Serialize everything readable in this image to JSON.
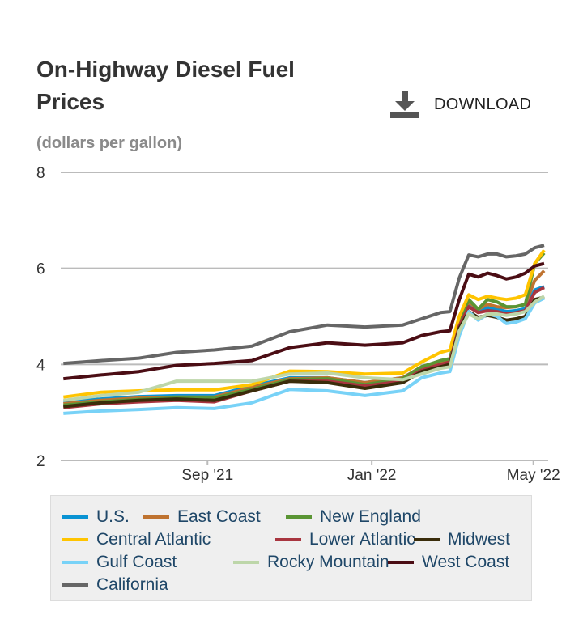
{
  "title": "On-Highway Diesel Fuel Prices",
  "subtitle": "(dollars per gallon)",
  "download_label": "DOWNLOAD",
  "download_icon": "download-icon",
  "chart_data": {
    "type": "line",
    "title": "On-Highway Diesel Fuel Prices",
    "ylabel": "dollars per gallon",
    "ylim": [
      2,
      8
    ],
    "yticks": [
      "2",
      "4",
      "6",
      "8"
    ],
    "xticks": [
      {
        "label": "Sep '21",
        "date": "2021-09-01"
      },
      {
        "label": "Jan '22",
        "date": "2022-01-01"
      },
      {
        "label": "May '22",
        "date": "2022-05-01"
      }
    ],
    "xlim": [
      "2021-05-15",
      "2022-05-12"
    ],
    "grid": true,
    "legend_position": "bottom",
    "x": [
      "2021-05-17",
      "2021-06-14",
      "2021-07-12",
      "2021-08-09",
      "2021-09-06",
      "2021-10-04",
      "2021-11-01",
      "2021-11-29",
      "2021-12-27",
      "2022-01-24",
      "2022-02-07",
      "2022-02-21",
      "2022-02-28",
      "2022-03-07",
      "2022-03-14",
      "2022-03-21",
      "2022-03-28",
      "2022-04-04",
      "2022-04-11",
      "2022-04-18",
      "2022-04-25",
      "2022-05-02",
      "2022-05-09"
    ],
    "series": [
      {
        "name": "U.S.",
        "color": "#0a93d3",
        "values": [
          3.22,
          3.28,
          3.33,
          3.35,
          3.35,
          3.55,
          3.72,
          3.72,
          3.62,
          3.72,
          3.95,
          4.05,
          4.1,
          4.85,
          5.25,
          5.13,
          5.18,
          5.15,
          5.1,
          5.12,
          5.16,
          5.55,
          5.62
        ]
      },
      {
        "name": "East Coast",
        "color": "#bf7330",
        "values": [
          3.18,
          3.25,
          3.3,
          3.32,
          3.32,
          3.52,
          3.7,
          3.72,
          3.62,
          3.72,
          3.95,
          4.05,
          4.1,
          4.9,
          5.3,
          5.15,
          5.25,
          5.2,
          5.18,
          5.2,
          5.25,
          5.75,
          5.95
        ]
      },
      {
        "name": "New England",
        "color": "#5a9534",
        "values": [
          3.15,
          3.22,
          3.27,
          3.3,
          3.3,
          3.48,
          3.68,
          3.7,
          3.58,
          3.7,
          3.95,
          4.08,
          4.12,
          4.9,
          5.35,
          5.15,
          5.35,
          5.3,
          5.2,
          5.2,
          5.25,
          6.1,
          6.32
        ]
      },
      {
        "name": "Central Atlantic",
        "color": "#ffc400",
        "values": [
          3.32,
          3.42,
          3.45,
          3.47,
          3.47,
          3.58,
          3.86,
          3.85,
          3.8,
          3.82,
          4.05,
          4.25,
          4.3,
          5.0,
          5.45,
          5.35,
          5.42,
          5.38,
          5.35,
          5.38,
          5.45,
          6.1,
          6.38
        ]
      },
      {
        "name": "Lower Atlantic",
        "color": "#a8353f",
        "values": [
          3.1,
          3.18,
          3.22,
          3.25,
          3.22,
          3.45,
          3.65,
          3.65,
          3.55,
          3.65,
          3.88,
          4.0,
          4.05,
          4.8,
          5.2,
          5.08,
          5.12,
          5.1,
          5.05,
          5.08,
          5.12,
          5.5,
          5.6
        ]
      },
      {
        "name": "Midwest",
        "color": "#3a2d0b",
        "values": [
          3.12,
          3.2,
          3.25,
          3.28,
          3.25,
          3.45,
          3.65,
          3.62,
          3.5,
          3.62,
          3.85,
          3.95,
          4.0,
          4.75,
          5.1,
          4.98,
          5.02,
          4.98,
          4.92,
          4.95,
          5.0,
          5.35,
          5.4
        ]
      },
      {
        "name": "Gulf Coast",
        "color": "#78d2f7",
        "values": [
          2.98,
          3.03,
          3.06,
          3.1,
          3.08,
          3.2,
          3.48,
          3.45,
          3.35,
          3.45,
          3.72,
          3.82,
          3.85,
          4.6,
          5.1,
          4.92,
          5.05,
          5.0,
          4.85,
          4.88,
          4.95,
          5.28,
          5.38
        ]
      },
      {
        "name": "Rocky Mountain",
        "color": "#bdd6a9",
        "values": [
          3.25,
          3.35,
          3.42,
          3.65,
          3.65,
          3.65,
          3.8,
          3.82,
          3.72,
          3.68,
          3.8,
          3.92,
          3.95,
          4.7,
          5.05,
          4.95,
          5.05,
          5.05,
          5.02,
          5.05,
          5.1,
          5.3,
          5.42
        ]
      },
      {
        "name": "West Coast",
        "color": "#4b0d14",
        "values": [
          3.7,
          3.78,
          3.85,
          3.98,
          4.02,
          4.08,
          4.35,
          4.45,
          4.4,
          4.45,
          4.6,
          4.68,
          4.7,
          5.35,
          5.88,
          5.82,
          5.9,
          5.85,
          5.78,
          5.82,
          5.9,
          6.05,
          6.1
        ]
      },
      {
        "name": "California",
        "color": "#666666",
        "values": [
          4.02,
          4.08,
          4.13,
          4.25,
          4.3,
          4.38,
          4.68,
          4.82,
          4.78,
          4.82,
          4.95,
          5.08,
          5.1,
          5.8,
          6.28,
          6.24,
          6.3,
          6.3,
          6.24,
          6.26,
          6.3,
          6.43,
          6.48
        ]
      }
    ]
  }
}
